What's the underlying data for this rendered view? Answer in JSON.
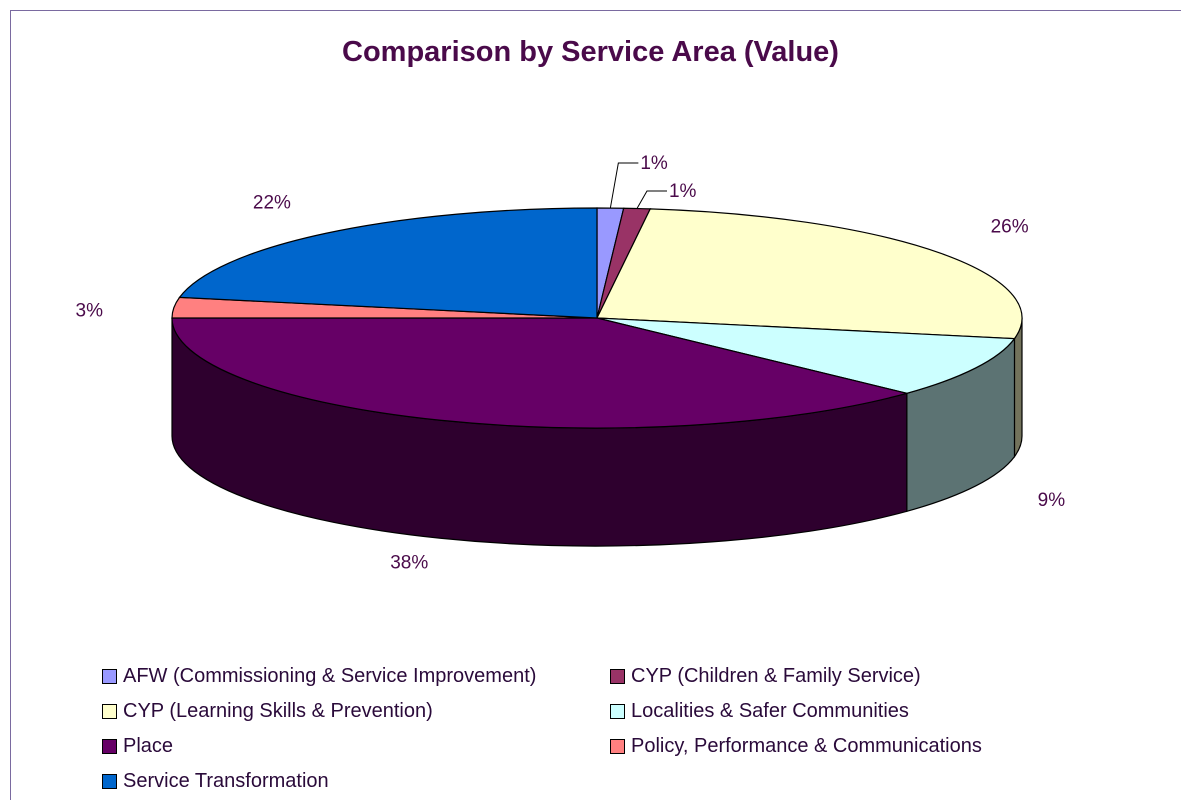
{
  "chart_data": {
    "type": "pie",
    "title": "Comparison by Service Area (Value)",
    "legend_position": "bottom",
    "three_d": true,
    "slices": [
      {
        "name": "AFW (Commissioning & Service Improvement)",
        "value": 1,
        "label": "1%",
        "color": "#9999ff"
      },
      {
        "name": "CYP (Children & Family Service)",
        "value": 1,
        "label": "1%",
        "color": "#993366"
      },
      {
        "name": "CYP (Learning Skills & Prevention)",
        "value": 26,
        "label": "26%",
        "color": "#ffffcc"
      },
      {
        "name": "Localities & Safer Communities",
        "value": 9,
        "label": "9%",
        "color": "#ccffff"
      },
      {
        "name": "Place",
        "value": 38,
        "label": "38%",
        "color": "#660066"
      },
      {
        "name": "Policy, Performance & Communications",
        "value": 3,
        "label": "3%",
        "color": "#ff8080"
      },
      {
        "name": "Service Transformation",
        "value": 22,
        "label": "22%",
        "color": "#0066cc"
      }
    ]
  }
}
